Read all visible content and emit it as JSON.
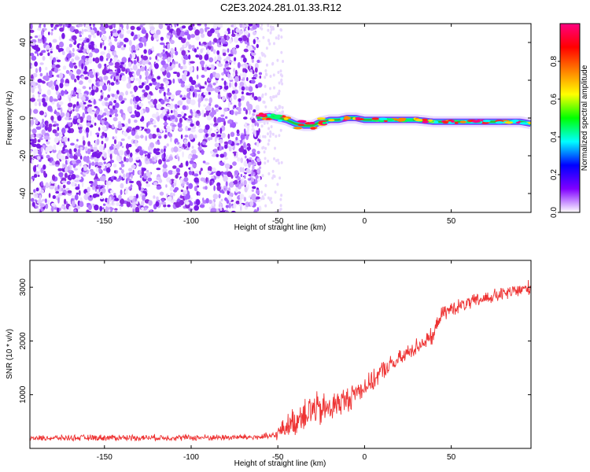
{
  "title": "C2E3.2024.281.01.33.R12",
  "chart_data": [
    {
      "type": "heatmap",
      "xlabel": "Height of straight line (km)",
      "ylabel": "Frequency (Hz)",
      "xlim": [
        -193,
        96
      ],
      "ylim": [
        -50,
        50
      ],
      "x_ticks": [
        -150,
        -100,
        -50,
        0,
        50
      ],
      "y_ticks": [
        -40,
        -20,
        0,
        20,
        40
      ],
      "noise_region_x": [
        -193,
        -60
      ],
      "sparse_region_x": [
        -60,
        -47
      ],
      "signal_track": {
        "x": [
          -62,
          -55,
          -50,
          -45,
          -40,
          -35,
          -30,
          -25,
          -20,
          -15,
          -10,
          -5,
          0,
          10,
          20,
          30,
          40,
          50,
          60,
          70,
          80,
          90,
          96
        ],
        "frequency_hz": [
          0,
          1,
          0,
          -1,
          -3,
          -4,
          -4,
          -2,
          -1,
          -1,
          0,
          0,
          -1,
          -1,
          -1,
          -1,
          -2,
          -2,
          -2,
          -2,
          -2,
          -2,
          -3
        ]
      },
      "colorbar": {
        "label": "Normalized spectral amplitude",
        "range": [
          0.0,
          1.0
        ],
        "ticks": [
          "0.0",
          "0.2",
          "0.4",
          "0.6",
          "0.8"
        ],
        "colors": [
          "#ffffff",
          "#8000ff",
          "#0000ff",
          "#00ffff",
          "#00ff00",
          "#ffff00",
          "#ff8000",
          "#ff0000",
          "#ff0080"
        ]
      },
      "grid": false
    },
    {
      "type": "line",
      "xlabel": "Height of straight line (km)",
      "ylabel": "SNR (10 * v/v)",
      "xlim": [
        -193,
        96
      ],
      "ylim": [
        0,
        3500
      ],
      "x_ticks": [
        -150,
        -100,
        -50,
        0,
        50
      ],
      "y_ticks": [
        1000,
        2000,
        3000
      ],
      "line_color": "#ee3333",
      "series": [
        {
          "x": [
            -193,
            -150,
            -100,
            -60,
            -52,
            -45,
            -40,
            -35,
            -30,
            -25,
            -20,
            -15,
            -10,
            -5,
            0,
            5,
            10,
            20,
            30,
            40,
            43,
            50,
            60,
            70,
            80,
            90,
            96
          ],
          "values": [
            190,
            200,
            200,
            210,
            230,
            420,
            500,
            680,
            720,
            700,
            750,
            850,
            900,
            1050,
            1150,
            1250,
            1450,
            1650,
            1900,
            2100,
            2450,
            2600,
            2700,
            2800,
            2870,
            2950,
            3000
          ],
          "noise_amplitude": [
            60,
            70,
            70,
            70,
            100,
            250,
            330,
            420,
            420,
            380,
            350,
            320,
            300,
            260,
            240,
            220,
            210,
            200,
            190,
            180,
            170,
            160,
            160,
            160,
            160,
            170,
            170
          ]
        }
      ],
      "grid": false
    }
  ]
}
